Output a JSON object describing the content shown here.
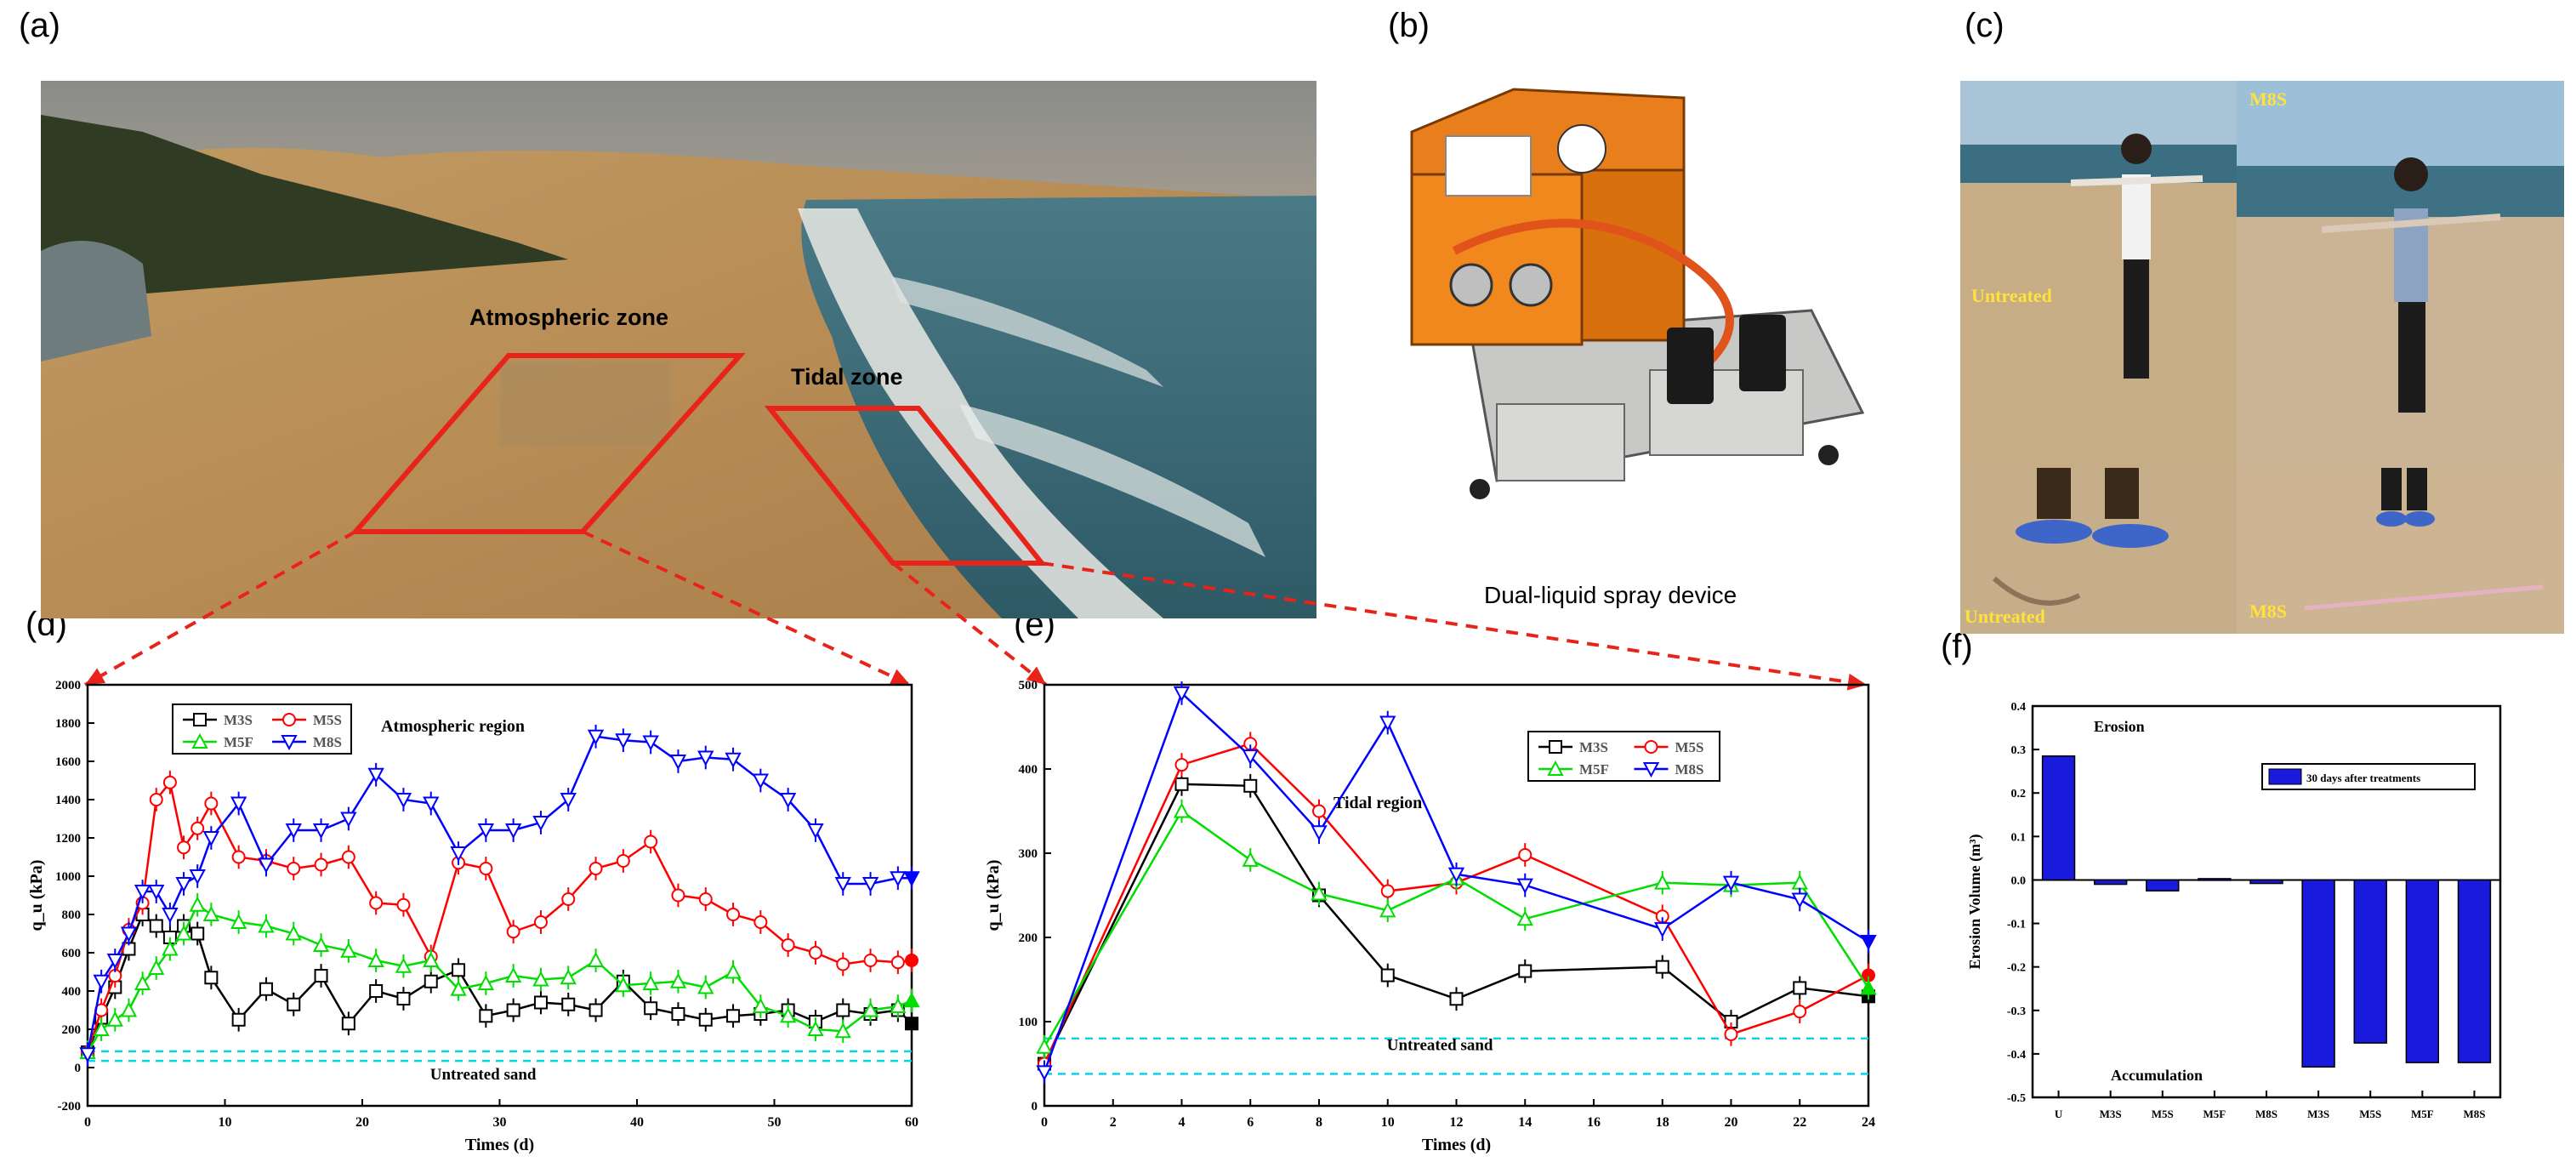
{
  "panels": {
    "a": {
      "label": "(a)",
      "zone1": "Atmospheric zone",
      "zone2": "Tidal zone"
    },
    "b": {
      "label": "(b)",
      "caption": "Dual-liquid spray  device"
    },
    "c": {
      "label": "(c)",
      "tl": "Untreated",
      "tr": "M8S",
      "bl": "Untreated",
      "br": "M8S"
    },
    "d": {
      "label": "(d)"
    },
    "e": {
      "label": "(e)"
    },
    "f": {
      "label": "(f)"
    }
  },
  "colors": {
    "M3S": "#000000",
    "M5S": "#ff0000",
    "M5F": "#00dd00",
    "M8S": "#0000ff",
    "untreated_band": "#00d8e8",
    "bar": "#1a1adc",
    "arrow": "#e8231a",
    "frame": "#e8231a"
  },
  "chart_data": [
    {
      "type": "line",
      "panel": "d",
      "annotation": "Atmospheric region",
      "xlabel": "Times (d)",
      "ylabel": "q_u (kPa)",
      "xlim": [
        0,
        60
      ],
      "ylim": [
        -200,
        2000
      ],
      "xticks": [
        "0",
        "10",
        "20",
        "30",
        "40",
        "50",
        "60"
      ],
      "yticks": [
        "-200",
        "0",
        "200",
        "400",
        "600",
        "800",
        "1000",
        "1200",
        "1400",
        "1600",
        "1800",
        "2000"
      ],
      "legend_position": "top-left",
      "untreated_label": "Untreated sand",
      "untreated_lines": [
        35,
        85
      ],
      "series": [
        {
          "name": "M3S",
          "marker": "square",
          "x": [
            0,
            1,
            2,
            3,
            4,
            5,
            6,
            7,
            8,
            9,
            11,
            13,
            15,
            17,
            19,
            21,
            23,
            25,
            27,
            29,
            31,
            33,
            35,
            37,
            39,
            41,
            43,
            45,
            47,
            49,
            51,
            53,
            55,
            57,
            59,
            60
          ],
          "y": [
            80,
            260,
            420,
            620,
            800,
            740,
            680,
            740,
            700,
            470,
            250,
            410,
            330,
            480,
            230,
            400,
            360,
            450,
            510,
            270,
            300,
            340,
            330,
            300,
            450,
            310,
            280,
            250,
            270,
            280,
            300,
            240,
            300,
            280,
            300,
            230
          ]
        },
        {
          "name": "M5S",
          "marker": "circle",
          "x": [
            0,
            1,
            2,
            3,
            4,
            5,
            6,
            7,
            8,
            9,
            11,
            13,
            15,
            17,
            19,
            21,
            23,
            25,
            27,
            29,
            31,
            33,
            35,
            37,
            39,
            41,
            43,
            45,
            47,
            49,
            51,
            53,
            55,
            57,
            59,
            60
          ],
          "y": [
            80,
            300,
            480,
            720,
            860,
            1400,
            1490,
            1150,
            1250,
            1380,
            1100,
            1080,
            1040,
            1060,
            1100,
            860,
            850,
            580,
            1070,
            1040,
            710,
            760,
            880,
            1040,
            1080,
            1180,
            900,
            880,
            800,
            760,
            640,
            600,
            540,
            560,
            550,
            560
          ]
        },
        {
          "name": "M5F",
          "marker": "triangle-up",
          "x": [
            0,
            1,
            2,
            3,
            4,
            5,
            6,
            7,
            8,
            9,
            11,
            13,
            15,
            17,
            19,
            21,
            23,
            25,
            27,
            29,
            31,
            33,
            35,
            37,
            39,
            41,
            43,
            45,
            47,
            49,
            51,
            53,
            55,
            57,
            59,
            60
          ],
          "y": [
            80,
            200,
            250,
            300,
            440,
            520,
            620,
            700,
            850,
            800,
            760,
            740,
            700,
            640,
            610,
            560,
            530,
            560,
            410,
            440,
            480,
            460,
            470,
            560,
            430,
            440,
            450,
            420,
            500,
            320,
            270,
            200,
            190,
            300,
            320,
            350
          ]
        },
        {
          "name": "M8S",
          "marker": "triangle-down",
          "x": [
            0,
            1,
            2,
            3,
            4,
            5,
            6,
            7,
            8,
            9,
            11,
            13,
            15,
            17,
            19,
            21,
            23,
            25,
            27,
            29,
            31,
            33,
            35,
            37,
            39,
            41,
            43,
            45,
            47,
            49,
            51,
            53,
            55,
            57,
            59,
            60
          ],
          "y": [
            70,
            450,
            560,
            700,
            920,
            920,
            800,
            960,
            1000,
            1200,
            1380,
            1060,
            1240,
            1240,
            1300,
            1530,
            1400,
            1380,
            1120,
            1240,
            1240,
            1280,
            1400,
            1730,
            1710,
            1700,
            1600,
            1620,
            1610,
            1500,
            1400,
            1240,
            960,
            960,
            990,
            990
          ]
        }
      ]
    },
    {
      "type": "line",
      "panel": "e",
      "annotation": "Tidal region",
      "xlabel": "Times (d)",
      "ylabel": "q_u (kPa)",
      "xlim": [
        0,
        24
      ],
      "ylim": [
        0,
        500
      ],
      "xticks": [
        "0",
        "2",
        "4",
        "6",
        "8",
        "10",
        "12",
        "14",
        "16",
        "18",
        "20",
        "22",
        "24"
      ],
      "yticks": [
        "0",
        "100",
        "200",
        "300",
        "400",
        "500"
      ],
      "legend_position": "top-right",
      "untreated_label": "Untreated sand",
      "untreated_lines": [
        38,
        80
      ],
      "series": [
        {
          "name": "M3S",
          "marker": "square",
          "x": [
            0,
            4,
            6,
            8,
            10,
            12,
            14,
            18,
            20,
            22,
            24
          ],
          "y": [
            50,
            382,
            380,
            250,
            155,
            127,
            160,
            165,
            100,
            140,
            130
          ]
        },
        {
          "name": "M5S",
          "marker": "circle",
          "x": [
            0,
            4,
            6,
            8,
            10,
            12,
            14,
            18,
            20,
            22,
            24
          ],
          "y": [
            50,
            405,
            430,
            350,
            255,
            265,
            298,
            225,
            85,
            112,
            155
          ]
        },
        {
          "name": "M5F",
          "marker": "triangle-up",
          "x": [
            0,
            4,
            6,
            8,
            10,
            12,
            14,
            18,
            20,
            22,
            24
          ],
          "y": [
            70,
            350,
            292,
            252,
            232,
            270,
            222,
            265,
            262,
            265,
            140
          ]
        },
        {
          "name": "M8S",
          "marker": "triangle-down",
          "x": [
            0,
            4,
            6,
            8,
            10,
            12,
            14,
            18,
            20,
            22,
            24
          ],
          "y": [
            40,
            490,
            415,
            325,
            455,
            275,
            262,
            210,
            265,
            245,
            195
          ]
        }
      ]
    },
    {
      "type": "bar",
      "panel": "f",
      "ylabel": "Erosion Volume (m³)",
      "ylim": [
        -0.5,
        0.4
      ],
      "yticks": [
        "-0.5",
        "-0.4",
        "-0.3",
        "-0.2",
        "-0.1",
        "0.0",
        "0.1",
        "0.2",
        "0.3",
        "0.4"
      ],
      "annotation_top": "Erosion",
      "annotation_bottom": "Accumulation",
      "legend": "30 days after treatments",
      "legend_position": "top-right",
      "categories": [
        "U",
        "M3S",
        "M5S",
        "M5F",
        "M8S",
        "M3S",
        "M5S",
        "M5F",
        "M8S"
      ],
      "values": [
        0.285,
        -0.01,
        -0.025,
        0.003,
        -0.008,
        -0.43,
        -0.375,
        -0.42,
        -0.42
      ]
    }
  ]
}
